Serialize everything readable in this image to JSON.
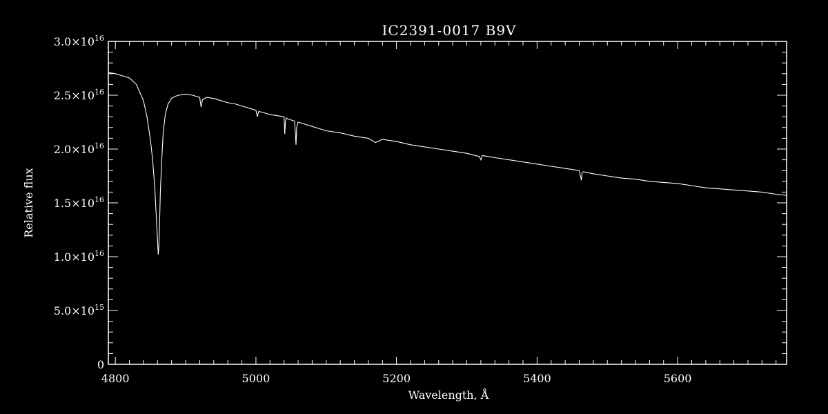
{
  "chart_data": {
    "type": "line",
    "title": "IC2391-0017  B9V",
    "xlabel": "Wavelength, Å",
    "ylabel": "Relative flux",
    "xlim": [
      4790,
      5755
    ],
    "ylim": [
      0,
      3e+16
    ],
    "grid": false,
    "colors": {
      "background": "#000000",
      "foreground": "#ffffff"
    },
    "x_major_ticks": [
      {
        "value": 4800,
        "label": "4800"
      },
      {
        "value": 5000,
        "label": "5000"
      },
      {
        "value": 5200,
        "label": "5200"
      },
      {
        "value": 5400,
        "label": "5400"
      },
      {
        "value": 5600,
        "label": "5600"
      }
    ],
    "x_minor_step": 20,
    "y_major_ticks": [
      {
        "value": 0,
        "mantissa": "0",
        "exponent": ""
      },
      {
        "value": 5000000000000000.0,
        "mantissa": "5.0×10",
        "exponent": "15"
      },
      {
        "value": 1e+16,
        "mantissa": "1.0×10",
        "exponent": "16"
      },
      {
        "value": 1.5e+16,
        "mantissa": "1.5×10",
        "exponent": "16"
      },
      {
        "value": 2e+16,
        "mantissa": "2.0×10",
        "exponent": "16"
      },
      {
        "value": 2.5e+16,
        "mantissa": "2.5×10",
        "exponent": "16"
      },
      {
        "value": 3e+16,
        "mantissa": "3.0×10",
        "exponent": "16"
      }
    ],
    "y_minor_step": 1000000000000000.0,
    "series": [
      {
        "x": [
          4790,
          4800,
          4810,
          4820,
          4830,
          4840,
          4845,
          4850,
          4853,
          4856,
          4858,
          4860,
          4861,
          4862,
          4863,
          4864,
          4866,
          4868,
          4871,
          4875,
          4880,
          4885,
          4890,
          4900,
          4910,
          4915,
          4920,
          4922,
          4924,
          4930,
          4940,
          4950,
          4960,
          4970,
          4980,
          4990,
          5000,
          5002,
          5004,
          5010,
          5020,
          5030,
          5040,
          5041,
          5042,
          5043,
          5045,
          5050,
          5055,
          5056,
          5057,
          5058,
          5060,
          5070,
          5080,
          5090,
          5100,
          5120,
          5140,
          5160,
          5170,
          5180,
          5200,
          5220,
          5240,
          5260,
          5280,
          5300,
          5318,
          5320,
          5322,
          5340,
          5360,
          5380,
          5400,
          5420,
          5440,
          5460,
          5462,
          5463,
          5464,
          5466,
          5480,
          5500,
          5520,
          5540,
          5560,
          5580,
          5600,
          5620,
          5640,
          5660,
          5680,
          5700,
          5720,
          5740,
          5755
        ],
        "values": [
          2.71e+16,
          2.7e+16,
          2.68e+16,
          2.66e+16,
          2.6e+16,
          2.45e+16,
          2.3e+16,
          2.08e+16,
          1.9e+16,
          1.65e+16,
          1.4e+16,
          1.15e+16,
          1.02e+16,
          1.1e+16,
          1.35e+16,
          1.6e+16,
          1.9e+16,
          2.15e+16,
          2.32e+16,
          2.42e+16,
          2.47e+16,
          2.49e+16,
          2.5e+16,
          2.51e+16,
          2.5e+16,
          2.49e+16,
          2.48e+16,
          2.39e+16,
          2.46e+16,
          2.48e+16,
          2.47e+16,
          2.45e+16,
          2.43e+16,
          2.42e+16,
          2.4e+16,
          2.38e+16,
          2.36e+16,
          2.3e+16,
          2.35e+16,
          2.34e+16,
          2.32e+16,
          2.31e+16,
          2.3e+16,
          2.14e+16,
          2.25e+16,
          2.29e+16,
          2.28e+16,
          2.27e+16,
          2.26e+16,
          2.15e+16,
          2.04e+16,
          2.2e+16,
          2.25e+16,
          2.23e+16,
          2.21e+16,
          2.19e+16,
          2.17e+16,
          2.15e+16,
          2.12e+16,
          2.1e+16,
          2.06e+16,
          2.09e+16,
          2.07e+16,
          2.04e+16,
          2.02e+16,
          2e+16,
          1.98e+16,
          1.96e+16,
          1.93e+16,
          1.9e+16,
          1.94e+16,
          1.92e+16,
          1.9e+16,
          1.88e+16,
          1.86e+16,
          1.84e+16,
          1.82e+16,
          1.8e+16,
          1.74e+16,
          1.71e+16,
          1.78e+16,
          1.79e+16,
          1.77e+16,
          1.75e+16,
          1.73e+16,
          1.72e+16,
          1.7e+16,
          1.69e+16,
          1.68e+16,
          1.66e+16,
          1.64e+16,
          1.63e+16,
          1.62e+16,
          1.61e+16,
          1.6e+16,
          1.58e+16,
          1.57e+16
        ]
      }
    ]
  }
}
